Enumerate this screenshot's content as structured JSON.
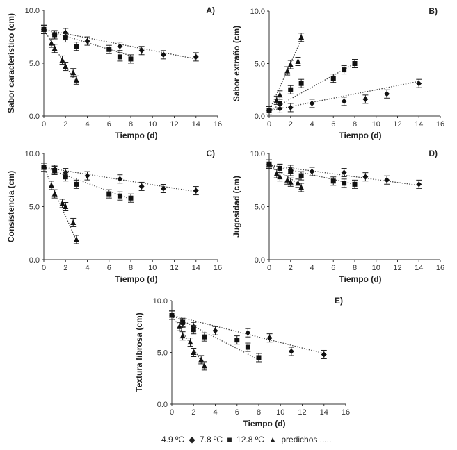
{
  "legend": {
    "t1": "4.9 ºC",
    "t2": "7.8 ºC",
    "t3": "12.8 ºC",
    "pred": "predichos ....."
  },
  "chart_data": [
    {
      "type": "scatter",
      "panel": "A)",
      "ylabel": "Sabor característico (cm)",
      "xlabel": "Tiempo (d)",
      "xlim": [
        0,
        16
      ],
      "ylim": [
        0,
        10
      ],
      "xticks": [
        "0",
        "2",
        "4",
        "6",
        "8",
        "10",
        "12",
        "14",
        "16"
      ],
      "yticks": [
        "0.0",
        "5.0",
        "10.0"
      ],
      "series": [
        {
          "name": "4.9 ºC",
          "marker": "diamond",
          "x": [
            0,
            1,
            2,
            4,
            7,
            9,
            11,
            14
          ],
          "y": [
            8.2,
            7.7,
            7.9,
            7.1,
            6.6,
            6.2,
            5.8,
            5.6
          ],
          "fit": [
            [
              0,
              8.2
            ],
            [
              14,
              5.4
            ]
          ]
        },
        {
          "name": "7.8 ºC",
          "marker": "square",
          "x": [
            0,
            1,
            2,
            3,
            6,
            7,
            8
          ],
          "y": [
            8.2,
            7.7,
            7.4,
            6.6,
            6.3,
            5.6,
            5.4
          ],
          "fit": [
            [
              0,
              8.2
            ],
            [
              8,
              5.7
            ]
          ]
        },
        {
          "name": "12.8 ºC",
          "marker": "triangle",
          "x": [
            0,
            0.7,
            1,
            1.7,
            2,
            2.7,
            3
          ],
          "y": [
            8.2,
            6.9,
            6.4,
            5.3,
            4.7,
            4.1,
            3.4
          ],
          "fit": [
            [
              0,
              8.2
            ],
            [
              3,
              3.1
            ]
          ]
        }
      ]
    },
    {
      "type": "scatter",
      "panel": "B)",
      "ylabel": "Sabor extraño (cm)",
      "xlabel": "Tiempo (d)",
      "xlim": [
        0,
        16
      ],
      "ylim": [
        0,
        10
      ],
      "xticks": [
        "0",
        "2",
        "4",
        "6",
        "8",
        "10",
        "12",
        "14",
        "16"
      ],
      "yticks": [
        "0.0",
        "5.0",
        "10.0"
      ],
      "series": [
        {
          "name": "4.9 ºC",
          "marker": "diamond",
          "x": [
            0,
            1,
            2,
            4,
            7,
            9,
            11,
            14
          ],
          "y": [
            0.5,
            0.7,
            0.8,
            1.2,
            1.4,
            1.6,
            2.1,
            3.1
          ],
          "fit": [
            [
              0,
              0.5
            ],
            [
              14,
              3.3
            ]
          ]
        },
        {
          "name": "7.8 ºC",
          "marker": "square",
          "x": [
            0,
            1,
            2,
            3,
            6,
            7,
            8
          ],
          "y": [
            0.5,
            1.2,
            2.5,
            3.1,
            3.6,
            4.4,
            5.0
          ],
          "fit": [
            [
              0,
              0.5
            ],
            [
              8,
              5.0
            ]
          ]
        },
        {
          "name": "12.8 ºC",
          "marker": "triangle",
          "x": [
            0,
            0.7,
            1,
            1.7,
            2,
            2.7,
            3
          ],
          "y": [
            0.5,
            1.5,
            2.0,
            4.3,
            4.9,
            5.2,
            7.5
          ],
          "fit": [
            [
              0,
              0.5
            ],
            [
              3,
              7.3
            ]
          ]
        }
      ]
    },
    {
      "type": "scatter",
      "panel": "C)",
      "ylabel": "Consistencia (cm)",
      "xlabel": "Tiempo (d)",
      "xlim": [
        0,
        16
      ],
      "ylim": [
        0,
        10
      ],
      "xticks": [
        "0",
        "2",
        "4",
        "6",
        "8",
        "10",
        "12",
        "14",
        "16"
      ],
      "yticks": [
        "0.0",
        "5.0",
        "10.0"
      ],
      "series": [
        {
          "name": "4.9 ºC",
          "marker": "diamond",
          "x": [
            0,
            1,
            2,
            4,
            7,
            9,
            11,
            14
          ],
          "y": [
            8.7,
            8.5,
            8.2,
            7.9,
            7.6,
            6.9,
            6.7,
            6.5
          ],
          "fit": [
            [
              0,
              8.7
            ],
            [
              14,
              6.4
            ]
          ]
        },
        {
          "name": "7.8 ºC",
          "marker": "square",
          "x": [
            0,
            1,
            2,
            3,
            6,
            7,
            8
          ],
          "y": [
            8.7,
            8.4,
            7.8,
            7.1,
            6.2,
            6.0,
            5.8
          ],
          "fit": [
            [
              0,
              8.7
            ],
            [
              8,
              5.7
            ]
          ]
        },
        {
          "name": "12.8 ºC",
          "marker": "triangle",
          "x": [
            0,
            0.7,
            1,
            1.7,
            2,
            2.7,
            3
          ],
          "y": [
            8.7,
            7.0,
            6.2,
            5.3,
            5.0,
            3.5,
            1.9
          ],
          "fit": [
            [
              0,
              8.7
            ],
            [
              3,
              1.8
            ]
          ]
        }
      ]
    },
    {
      "type": "scatter",
      "panel": "D)",
      "ylabel": "Jugosidad (cm)",
      "xlabel": "Tiempo (d)",
      "xlim": [
        0,
        16
      ],
      "ylim": [
        0,
        10
      ],
      "xticks": [
        "0",
        "2",
        "4",
        "6",
        "8",
        "10",
        "12",
        "14",
        "16"
      ],
      "yticks": [
        "0.0",
        "5.0",
        "10.0"
      ],
      "series": [
        {
          "name": "4.9 ºC",
          "marker": "diamond",
          "x": [
            0,
            1,
            2,
            4,
            7,
            9,
            11,
            14
          ],
          "y": [
            9.0,
            8.6,
            8.5,
            8.3,
            8.2,
            7.8,
            7.5,
            7.1
          ],
          "fit": [
            [
              0,
              8.9
            ],
            [
              14,
              7.0
            ]
          ]
        },
        {
          "name": "7.8 ºC",
          "marker": "square",
          "x": [
            0,
            1,
            2,
            3,
            6,
            7,
            8
          ],
          "y": [
            9.0,
            8.6,
            8.3,
            7.9,
            7.4,
            7.2,
            7.1
          ],
          "fit": [
            [
              0,
              8.9
            ],
            [
              8,
              7.1
            ]
          ]
        },
        {
          "name": "12.8 ºC",
          "marker": "triangle",
          "x": [
            0,
            0.7,
            1,
            1.7,
            2,
            2.7,
            3
          ],
          "y": [
            9.0,
            8.1,
            7.8,
            7.5,
            7.3,
            7.2,
            6.8
          ],
          "fit": [
            [
              0,
              8.9
            ],
            [
              3,
              7.0
            ]
          ]
        }
      ]
    },
    {
      "type": "scatter",
      "panel": "E)",
      "ylabel": "Textura fibrosa (cm)",
      "xlabel": "Tiempo (d)",
      "xlim": [
        0,
        16
      ],
      "ylim": [
        0,
        10
      ],
      "xticks": [
        "0",
        "2",
        "4",
        "6",
        "8",
        "10",
        "12",
        "14",
        "16"
      ],
      "yticks": [
        "0.0",
        "5.0",
        "10.0"
      ],
      "series": [
        {
          "name": "4.9 ºC",
          "marker": "diamond",
          "x": [
            0,
            1,
            2,
            4,
            7,
            9,
            11,
            14
          ],
          "y": [
            8.6,
            7.8,
            7.5,
            7.1,
            6.9,
            6.4,
            5.1,
            4.8
          ],
          "fit": [
            [
              0,
              8.6
            ],
            [
              14,
              4.9
            ]
          ]
        },
        {
          "name": "7.8 ºC",
          "marker": "square",
          "x": [
            0,
            1,
            2,
            3,
            6,
            7,
            8
          ],
          "y": [
            8.6,
            7.9,
            7.2,
            6.5,
            6.2,
            5.5,
            4.5
          ],
          "fit": [
            [
              0,
              8.6
            ],
            [
              8,
              4.3
            ]
          ]
        },
        {
          "name": "12.8 ºC",
          "marker": "triangle",
          "x": [
            0,
            0.7,
            1,
            1.7,
            2,
            2.7,
            3
          ],
          "y": [
            8.6,
            7.5,
            6.6,
            6.0,
            5.0,
            4.3,
            3.7
          ],
          "fit": [
            [
              0,
              8.6
            ],
            [
              3,
              3.7
            ]
          ]
        }
      ]
    }
  ]
}
